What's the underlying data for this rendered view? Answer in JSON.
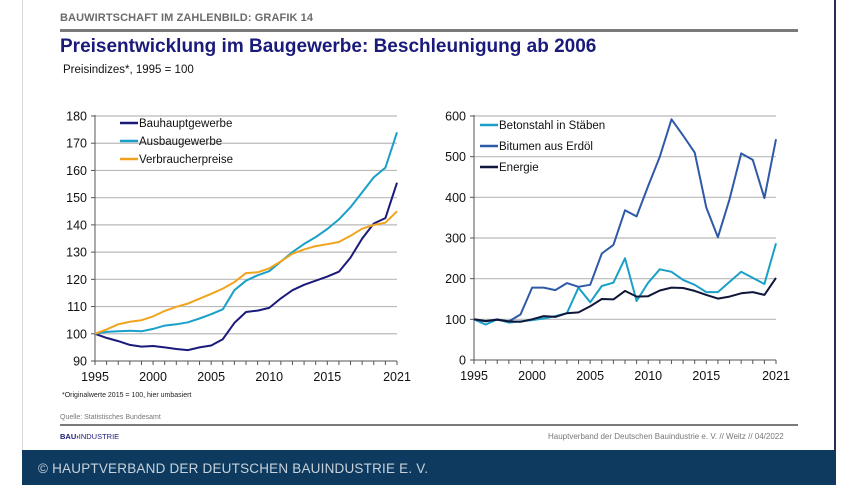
{
  "header": {
    "kicker": "BAUWIRTSCHAFT IM ZAHLENBILD: GRAFIK 14",
    "title": "Preisentwicklung im Baugewerbe: Beschleunigung ab 2006",
    "subtitle": "Preisindizes*, 1995 = 100"
  },
  "footer": {
    "note": "*Originalwerte 2015 = 100, hier umbasiert",
    "source": "Quelle: Statistisches Bundesamt",
    "logo_bold": "BAU",
    "logo_mark": "›",
    "logo_rest": "INDUSTRIE",
    "credit": "Hauptverband  der Deutschen Bauindustrie e. V. // Weitz // 04/2022",
    "copyright": "© HAUPTVERBAND DER DEUTSCHEN BAUINDUSTRIE E. V."
  },
  "colors": {
    "title": "#1a1a7a",
    "band": "#0d3a5e"
  },
  "chart_data": [
    {
      "type": "line",
      "title": "",
      "xlabel": "",
      "ylabel": "",
      "x": [
        1995,
        1996,
        1997,
        1998,
        1999,
        2000,
        2001,
        2002,
        2003,
        2004,
        2005,
        2006,
        2007,
        2008,
        2009,
        2010,
        2011,
        2012,
        2013,
        2014,
        2015,
        2016,
        2017,
        2018,
        2019,
        2020,
        2021
      ],
      "xticks": [
        1995,
        2000,
        2005,
        2010,
        2015,
        2021
      ],
      "ylim": [
        90,
        180
      ],
      "yticks": [
        90,
        100,
        110,
        120,
        130,
        140,
        150,
        160,
        170,
        180
      ],
      "grid": true,
      "legend_position": "top-left",
      "series": [
        {
          "name": "Bauhauptgewerbe",
          "color": "#1b1a7a",
          "values": [
            100,
            98.5,
            97.3,
            95.9,
            95.3,
            95.5,
            95,
            94.4,
            94,
            95,
            95.7,
            98,
            104,
            108,
            108.5,
            109.5,
            113,
            116,
            118,
            119.5,
            121,
            122.8,
            128,
            135,
            140.5,
            142.5,
            155.5
          ]
        },
        {
          "name": "Ausbaugewerbe",
          "color": "#1aa0c8",
          "values": [
            100,
            100.7,
            100.9,
            101.1,
            100.9,
            101.8,
            103,
            103.5,
            104.2,
            105.6,
            107.2,
            109,
            116,
            119.5,
            121.5,
            123,
            126.5,
            130,
            133,
            135.5,
            138.5,
            142,
            146.5,
            152,
            157.5,
            161,
            174
          ]
        },
        {
          "name": "Verbraucherpreise",
          "color": "#f0a41e",
          "values": [
            100,
            101.6,
            103.5,
            104.4,
            105,
            106.4,
            108.4,
            109.9,
            111.1,
            112.9,
            114.7,
            116.6,
            119,
            122.3,
            122.6,
            124,
            126.6,
            129.4,
            131,
            132.2,
            132.9,
            133.7,
            136,
            138.6,
            140,
            140.8,
            145
          ]
        }
      ]
    },
    {
      "type": "line",
      "title": "",
      "xlabel": "",
      "ylabel": "",
      "x": [
        1995,
        1996,
        1997,
        1998,
        1999,
        2000,
        2001,
        2002,
        2003,
        2004,
        2005,
        2006,
        2007,
        2008,
        2009,
        2010,
        2011,
        2012,
        2013,
        2014,
        2015,
        2016,
        2017,
        2018,
        2019,
        2020,
        2021
      ],
      "xticks": [
        1995,
        2000,
        2005,
        2010,
        2015,
        2021
      ],
      "ylim": [
        0,
        600
      ],
      "yticks": [
        0,
        100,
        200,
        300,
        400,
        500,
        600
      ],
      "grid": true,
      "legend_position": "top-left",
      "series": [
        {
          "name": "Betonstahl in Stäben",
          "color": "#1aa0c8",
          "values": [
            100,
            87,
            100,
            92,
            95,
            98,
            102,
            108,
            115,
            178,
            142,
            182,
            190,
            250,
            145,
            190,
            223,
            217,
            197,
            185,
            167,
            167,
            192,
            217,
            202,
            187,
            287
          ]
        },
        {
          "name": "Bitumen aus Erdöl",
          "color": "#2e5aa8",
          "values": [
            100,
            95,
            100,
            95,
            112,
            178,
            178,
            172,
            189,
            180,
            185,
            262,
            283,
            368,
            353,
            428,
            500,
            592,
            552,
            510,
            375,
            302,
            395,
            508,
            492,
            398,
            543
          ]
        },
        {
          "name": "Energie",
          "color": "#0f1638",
          "values": [
            100,
            96,
            99,
            95,
            94,
            100,
            108,
            106,
            115,
            117,
            132,
            150,
            149,
            170,
            156,
            157,
            171,
            178,
            177,
            170,
            160,
            151,
            156,
            164,
            167,
            160,
            202
          ]
        }
      ]
    }
  ]
}
